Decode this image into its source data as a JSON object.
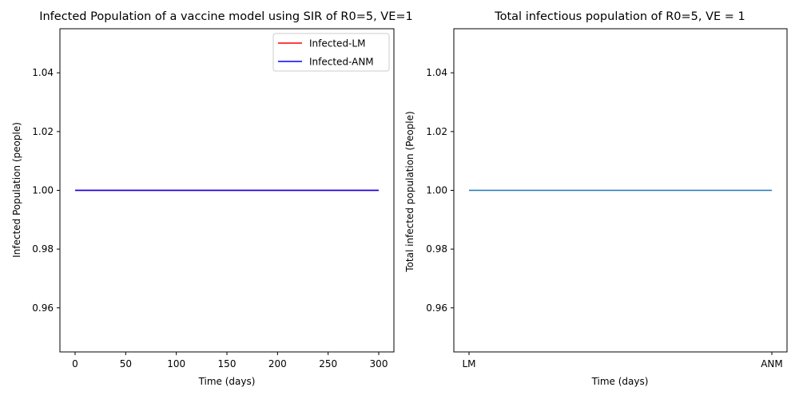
{
  "chart_data": [
    {
      "type": "line",
      "title": "Infected Population of a vaccine model using SIR of R0=5, VE=1",
      "xlabel": "Time (days)",
      "ylabel": "Infected Population (people)",
      "xlim": [
        -15,
        315
      ],
      "ylim": [
        0.945,
        1.055
      ],
      "xticks": [
        0,
        50,
        100,
        150,
        200,
        250,
        300
      ],
      "yticks": [
        0.96,
        0.98,
        1.0,
        1.02,
        1.04
      ],
      "ytick_labels": [
        "0.96",
        "0.98",
        "1.00",
        "1.02",
        "1.04"
      ],
      "legend_position": "upper right",
      "series": [
        {
          "name": "Infected-LM",
          "color": "#ff0000",
          "x": [
            0,
            300
          ],
          "y": [
            1.0,
            1.0
          ]
        },
        {
          "name": "Infected-ANM",
          "color": "#0000ff",
          "x": [
            0,
            300
          ],
          "y": [
            1.0,
            1.0
          ]
        }
      ],
      "grid": false
    },
    {
      "type": "line",
      "title": "Total infectious population of R0=5, VE = 1",
      "xlabel": "Time (days)",
      "ylabel": "Total infected population (People)",
      "categories": [
        "LM",
        "ANM"
      ],
      "ylim": [
        0.945,
        1.055
      ],
      "yticks": [
        0.96,
        0.98,
        1.0,
        1.02,
        1.04
      ],
      "ytick_labels": [
        "0.96",
        "0.98",
        "1.00",
        "1.02",
        "1.04"
      ],
      "series": [
        {
          "color": "#1f77b4",
          "values": [
            1.0,
            1.0
          ]
        }
      ],
      "grid": false
    }
  ]
}
